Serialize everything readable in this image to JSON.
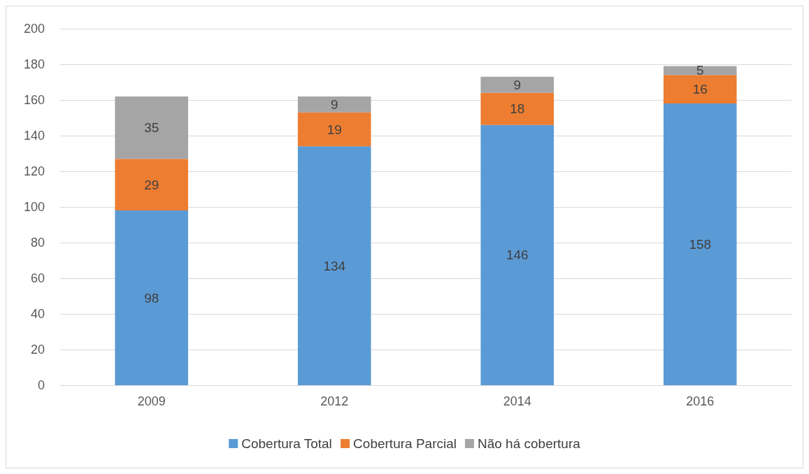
{
  "chart_data": {
    "type": "bar",
    "stacked": true,
    "categories": [
      "2009",
      "2012",
      "2014",
      "2016"
    ],
    "series": [
      {
        "name": "Cobertura Total",
        "color": "#5b9bd5",
        "values": [
          98,
          134,
          146,
          158
        ]
      },
      {
        "name": "Cobertura Parcial",
        "color": "#ed7d31",
        "values": [
          29,
          19,
          18,
          16
        ]
      },
      {
        "name": "Não há cobertura",
        "color": "#a5a5a5",
        "values": [
          35,
          9,
          9,
          5
        ]
      }
    ],
    "ylim": [
      0,
      200
    ],
    "yticks": [
      0,
      20,
      40,
      60,
      80,
      100,
      120,
      140,
      160,
      180,
      200
    ],
    "grid": "y",
    "legend": "bottom",
    "data_labels": true
  }
}
